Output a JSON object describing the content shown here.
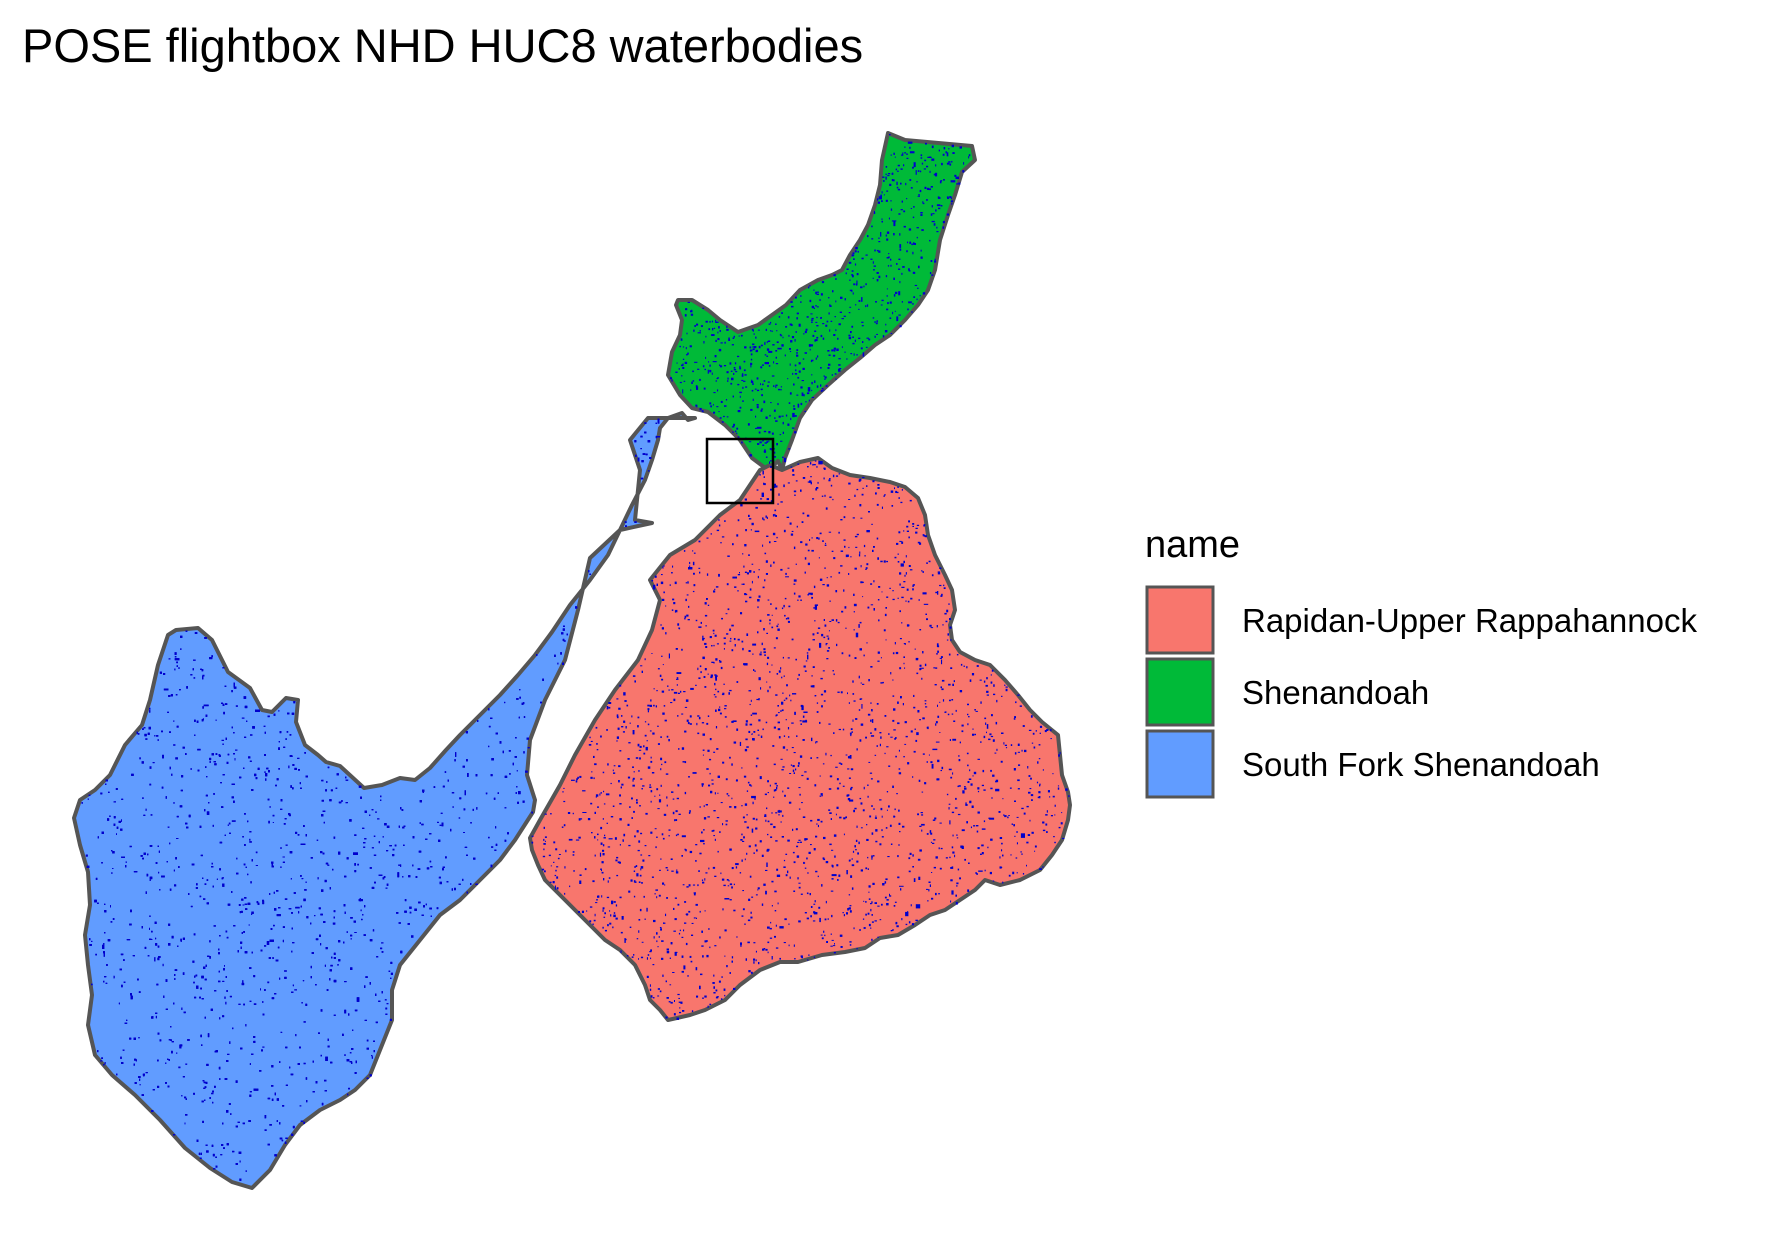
{
  "title": "POSE flightbox NHD HUC8 waterbodies",
  "legend": {
    "title": "name",
    "items": [
      {
        "label": "Rapidan-Upper Rappahannock",
        "color": "#F8766D"
      },
      {
        "label": "Shenandoah",
        "color": "#00BA38"
      },
      {
        "label": "South Fork Shenandoah",
        "color": "#619CFF"
      }
    ]
  },
  "colors": {
    "waterbody": "#0000CD",
    "border": "#555555",
    "flightbox": "#000000"
  }
}
